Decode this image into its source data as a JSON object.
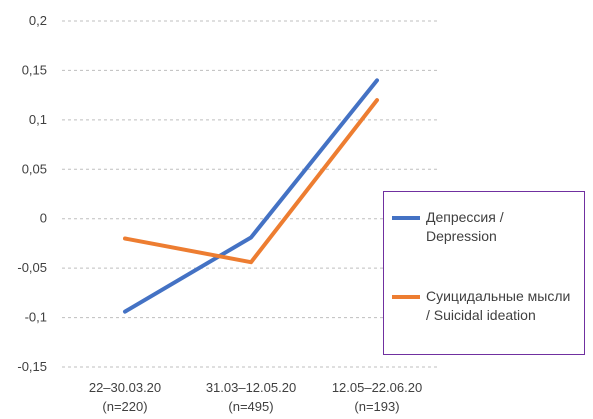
{
  "chart_data": {
    "type": "line",
    "categories": [
      [
        "22–30.03.20",
        "(n=220)"
      ],
      [
        "31.03–12.05.20",
        "(n=495)"
      ],
      [
        "12.05–22.06.20",
        "(n=193)"
      ]
    ],
    "series": [
      {
        "name": "Депрессия / Depression",
        "color": "#4472c4",
        "values": [
          -0.094,
          -0.019,
          0.14
        ]
      },
      {
        "name": "Суицидальные мысли / Suicidal ideation",
        "color": "#ed7d31",
        "values": [
          -0.02,
          -0.044,
          0.12
        ]
      }
    ],
    "yticks": [
      "0,2",
      "0,15",
      "0,1",
      "0,05",
      "0",
      "-0,05",
      "-0,1",
      "-0,15"
    ],
    "ylim": [
      -0.15,
      0.2
    ],
    "grid": "horizontal-dashed",
    "legend": "right",
    "legend_border_color": "#7030a0"
  }
}
